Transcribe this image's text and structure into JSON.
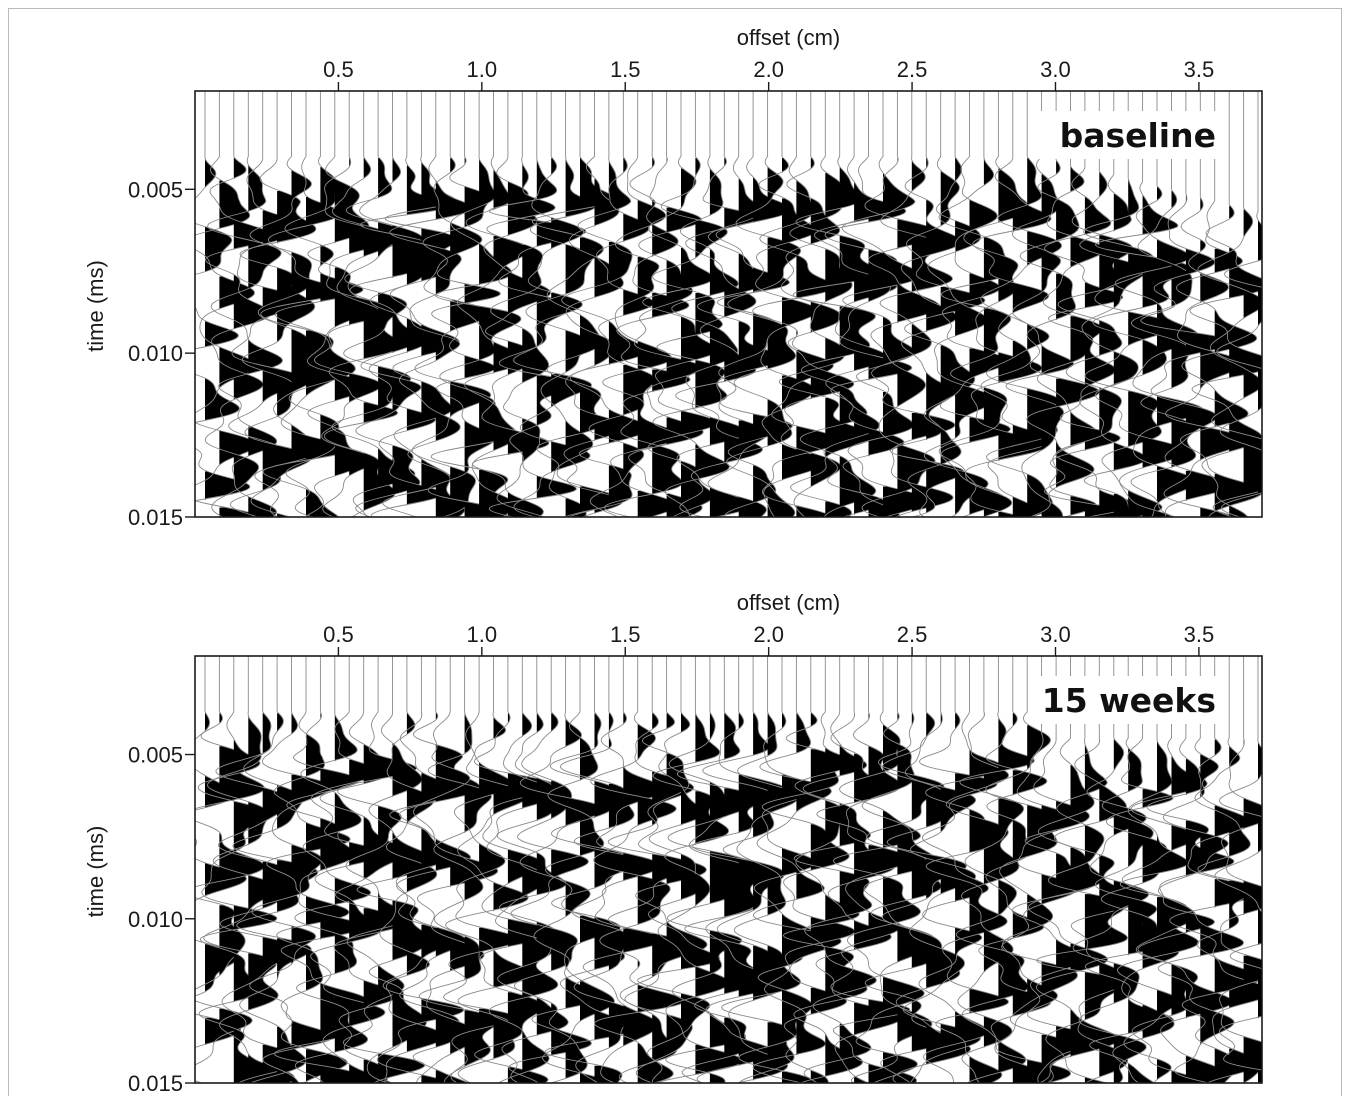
{
  "chart_data": [
    {
      "type": "seismic-wiggle",
      "panel_label": "baseline",
      "xlabel": "offset (cm)",
      "ylabel": "time (ms)",
      "x_ticks": [
        "0.5",
        "1.0",
        "1.5",
        "2.0",
        "2.5",
        "3.0",
        "3.5"
      ],
      "x_tick_values": [
        0.5,
        1.0,
        1.5,
        2.0,
        2.5,
        3.0,
        3.5
      ],
      "y_ticks": [
        "0.005",
        "0.010",
        "0.015"
      ],
      "y_tick_values": [
        0.005,
        0.01,
        0.015
      ],
      "xlim": [
        0.0,
        3.72
      ],
      "ylim": [
        0.002,
        0.015
      ],
      "trace_count": 74,
      "first_arrival_ms": [
        0.004,
        0.004,
        0.004,
        0.004,
        0.0057
      ],
      "first_arrival_offsets_cm": [
        0.0,
        1.0,
        2.0,
        2.95,
        3.7
      ]
    },
    {
      "type": "seismic-wiggle",
      "panel_label": "15 weeks",
      "xlabel": "offset (cm)",
      "ylabel": "time (ms)",
      "x_ticks": [
        "0.5",
        "1.0",
        "1.5",
        "2.0",
        "2.5",
        "3.0",
        "3.5"
      ],
      "x_tick_values": [
        0.5,
        1.0,
        1.5,
        2.0,
        2.5,
        3.0,
        3.5
      ],
      "y_ticks": [
        "0.005",
        "0.010",
        "0.015"
      ],
      "y_tick_values": [
        0.005,
        0.01,
        0.015
      ],
      "xlim": [
        0.0,
        3.72
      ],
      "ylim": [
        0.002,
        0.015
      ],
      "trace_count": 74,
      "first_arrival_ms": [
        0.0037,
        0.0037,
        0.0037,
        0.0037,
        0.0045,
        0.0045
      ],
      "first_arrival_offsets_cm": [
        0.0,
        1.0,
        2.0,
        2.9,
        2.95,
        3.7
      ]
    }
  ],
  "colors": {
    "ink": "#000000",
    "trace_line": "#8a8a8a",
    "frame": "#1a1a1a"
  }
}
